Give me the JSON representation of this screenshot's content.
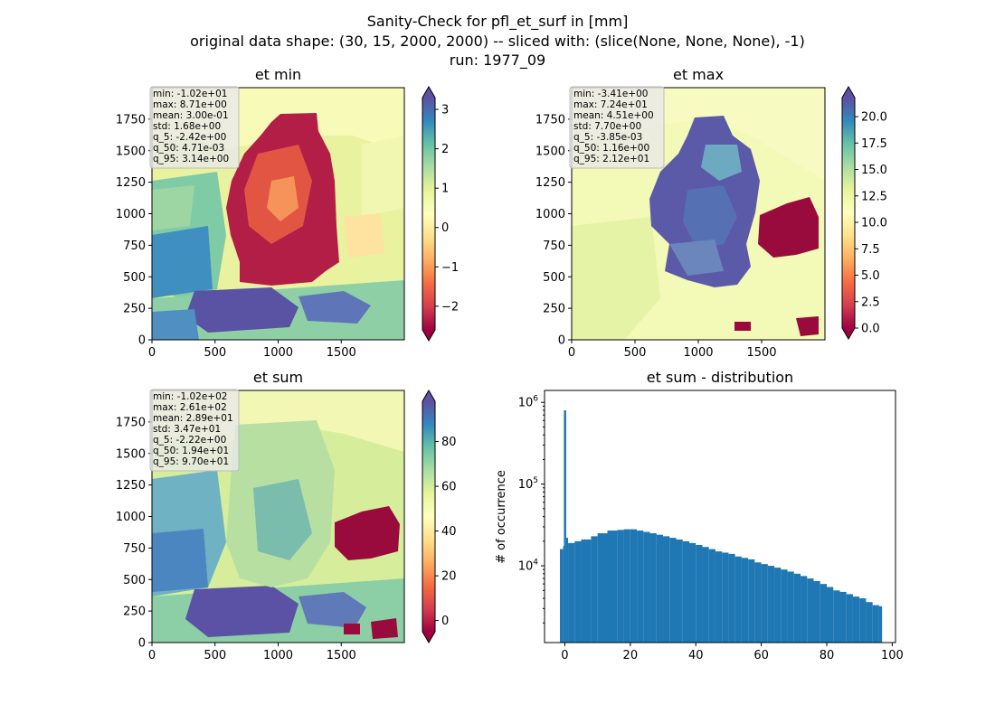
{
  "figure": {
    "title_lines": [
      "Sanity-Check for pfl_et_surf in [mm]",
      "original data shape: (30, 15, 2000, 2000) -- sliced with: (slice(None, None, None), -1)",
      "run: 1977_09"
    ]
  },
  "chart_data": [
    {
      "type": "heatmap",
      "title": "et min",
      "xlim": [
        0,
        2000
      ],
      "ylim": [
        0,
        2000
      ],
      "xticks": [
        "0",
        "500",
        "1000",
        "1500"
      ],
      "yticks": [
        "0",
        "250",
        "500",
        "750",
        "1000",
        "1250",
        "1500",
        "1750"
      ],
      "colormap": "Spectral",
      "colorbar": {
        "vmin": -2.6,
        "vmax": 3.3,
        "ticks": [
          -2,
          -1,
          0,
          1,
          2,
          3
        ],
        "tick_labels": [
          "−2",
          "−1",
          "0",
          "1",
          "2",
          "3"
        ],
        "extend": "both"
      },
      "stats": [
        "min: -1.02e+01",
        "max: 8.71e+00",
        "mean: 3.00e-01",
        "std: 1.68e+00",
        "q_5: -2.42e+00",
        "q_50: 4.71e-03",
        "q_95: 3.14e+00"
      ]
    },
    {
      "type": "heatmap",
      "title": "et max",
      "xlim": [
        0,
        2000
      ],
      "ylim": [
        0,
        2000
      ],
      "xticks": [
        "0",
        "500",
        "1000",
        "1500"
      ],
      "yticks": [
        "0",
        "250",
        "500",
        "750",
        "1000",
        "1250",
        "1500",
        "1750"
      ],
      "colormap": "Spectral",
      "colorbar": {
        "vmin": 0,
        "vmax": 21.8,
        "ticks": [
          0,
          2.5,
          5,
          7.5,
          10,
          12.5,
          15,
          17.5,
          20
        ],
        "tick_labels": [
          "0.0",
          "2.5",
          "5.0",
          "7.5",
          "10.0",
          "12.5",
          "15.0",
          "17.5",
          "20.0"
        ],
        "extend": "both"
      },
      "stats": [
        "min: -3.41e+00",
        "max: 7.24e+01",
        "mean: 4.51e+00",
        "std: 7.70e+00",
        "q_5: -3.85e-03",
        "q_50: 1.16e+00",
        "q_95: 2.12e+01"
      ]
    },
    {
      "type": "heatmap",
      "title": "et sum",
      "xlim": [
        0,
        2000
      ],
      "ylim": [
        0,
        2000
      ],
      "xticks": [
        "0",
        "500",
        "1000",
        "1500"
      ],
      "yticks": [
        "0",
        "250",
        "500",
        "750",
        "1000",
        "1250",
        "1500",
        "1750"
      ],
      "colormap": "Spectral",
      "colorbar": {
        "vmin": -5,
        "vmax": 98,
        "ticks": [
          0,
          20,
          40,
          60,
          80
        ],
        "tick_labels": [
          "0",
          "20",
          "40",
          "60",
          "80"
        ],
        "extend": "both"
      },
      "stats": [
        "min: -1.02e+02",
        "max: 2.61e+02",
        "mean: 2.89e+01",
        "std: 3.47e+01",
        "q_5: -2.22e+00",
        "q_50: 1.94e+01",
        "q_95: 9.70e+01"
      ]
    },
    {
      "type": "bar",
      "title": "et sum - distribution",
      "ylabel": "# of occurrence",
      "yscale": "log",
      "xlim": [
        -6.2,
        101
      ],
      "ylim": [
        1150,
        1400000
      ],
      "xticks": [
        "0",
        "20",
        "40",
        "60",
        "80",
        "100"
      ],
      "yticks": [
        "10^4",
        "10^5",
        "10^6"
      ],
      "bar_color": "#1f77b4",
      "bins": [
        {
          "x": -1.5,
          "y": 16000
        },
        {
          "x": -0.5,
          "y": 17500
        },
        {
          "x": 0.0,
          "y": 800000
        },
        {
          "x": 0.5,
          "y": 22000
        },
        {
          "x": 1,
          "y": 19000
        },
        {
          "x": 3,
          "y": 20000
        },
        {
          "x": 5,
          "y": 21000
        },
        {
          "x": 8,
          "y": 23000
        },
        {
          "x": 10,
          "y": 25000
        },
        {
          "x": 13,
          "y": 27000
        },
        {
          "x": 16,
          "y": 27500
        },
        {
          "x": 18,
          "y": 28000
        },
        {
          "x": 20,
          "y": 28000
        },
        {
          "x": 22,
          "y": 27000
        },
        {
          "x": 24,
          "y": 26000
        },
        {
          "x": 26,
          "y": 25000
        },
        {
          "x": 28,
          "y": 24000
        },
        {
          "x": 30,
          "y": 23000
        },
        {
          "x": 32,
          "y": 22000
        },
        {
          "x": 34,
          "y": 21000
        },
        {
          "x": 36,
          "y": 20000
        },
        {
          "x": 38,
          "y": 19000
        },
        {
          "x": 40,
          "y": 18000
        },
        {
          "x": 42,
          "y": 17000
        },
        {
          "x": 44,
          "y": 16000
        },
        {
          "x": 46,
          "y": 15000
        },
        {
          "x": 48,
          "y": 14500
        },
        {
          "x": 50,
          "y": 14000
        },
        {
          "x": 52,
          "y": 13000
        },
        {
          "x": 54,
          "y": 12500
        },
        {
          "x": 56,
          "y": 12000
        },
        {
          "x": 58,
          "y": 11000
        },
        {
          "x": 60,
          "y": 10500
        },
        {
          "x": 62,
          "y": 10000
        },
        {
          "x": 64,
          "y": 9500
        },
        {
          "x": 66,
          "y": 9000
        },
        {
          "x": 68,
          "y": 8500
        },
        {
          "x": 70,
          "y": 8000
        },
        {
          "x": 72,
          "y": 7500
        },
        {
          "x": 74,
          "y": 7000
        },
        {
          "x": 76,
          "y": 6500
        },
        {
          "x": 78,
          "y": 6000
        },
        {
          "x": 80,
          "y": 5500
        },
        {
          "x": 82,
          "y": 5000
        },
        {
          "x": 84,
          "y": 4800
        },
        {
          "x": 86,
          "y": 4500
        },
        {
          "x": 88,
          "y": 4200
        },
        {
          "x": 90,
          "y": 4000
        },
        {
          "x": 92,
          "y": 3600
        },
        {
          "x": 94,
          "y": 3300
        },
        {
          "x": 96,
          "y": 3200
        }
      ]
    }
  ]
}
